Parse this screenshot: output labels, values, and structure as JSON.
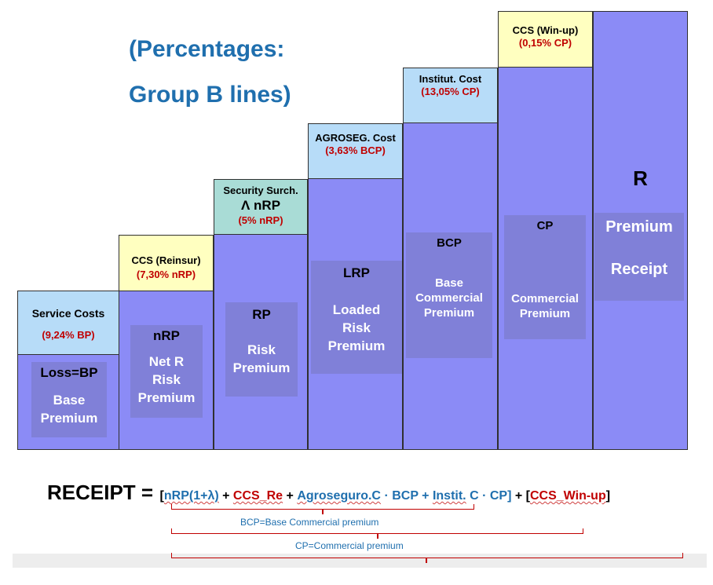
{
  "title": {
    "line1": "(Percentages:",
    "line2": "Group B lines)"
  },
  "columns": [
    {
      "header": {
        "label": "Service Costs",
        "pct": "(9,24% BP)"
      },
      "inner": {
        "abbr": "Loss=BP",
        "l1": "Base",
        "l2": "Premium"
      }
    },
    {
      "header": {
        "label": "CCS (Reinsur)",
        "pct": "(7,30% nRP)"
      },
      "inner": {
        "abbr": "nRP",
        "l1": "Net R",
        "l2": "Risk",
        "l3": "Premium"
      }
    },
    {
      "header": {
        "label": "Security Surch.",
        "sub": "Λ nRP",
        "pct": "(5% nRP)"
      },
      "inner": {
        "abbr": "RP",
        "l1": "Risk",
        "l2": "Premium"
      }
    },
    {
      "header": {
        "label": "AGROSEG. Cost",
        "pct": "(3,63% BCP)"
      },
      "inner": {
        "abbr": "LRP",
        "l1": "Loaded",
        "l2": "Risk",
        "l3": "Premium"
      }
    },
    {
      "header": {
        "label": "Institut. Cost",
        "pct": "(13,05% CP)"
      },
      "inner": {
        "abbr": "BCP",
        "l1": "Base",
        "l2": "Commercial",
        "l3": "Premium"
      }
    },
    {
      "header": {
        "label": "CCS (Win-up)",
        "pct": "(0,15% CP)"
      },
      "inner": {
        "abbr": "CP",
        "l1": "Commercial",
        "l2": "Premium"
      }
    },
    {
      "big": "R",
      "inner": {
        "l1": "Premium",
        "l2": "Receipt"
      }
    }
  ],
  "formula": {
    "lhs": "RECEIPT =",
    "b1": "[",
    "t1": "nRP(1+λ)",
    "op1": "+",
    "t2": "CCS_Re",
    "op2": "+",
    "t3": "Agroseguro.C",
    "op3": "· BCP +",
    "t4": "Instit.",
    "t5": "C · CP]",
    "op4": "+ [",
    "t6": "CCS_Win-up",
    "b2": "]"
  },
  "braces": {
    "bcp": "BCP=Base Commercial premium",
    "cp": "CP=Commercial premium"
  },
  "colors": {
    "column": "#8b8bf6",
    "inner": "#8080d8",
    "yellow": "#ffffc0",
    "lightblue": "#b7dcf8",
    "teal": "#a9dcd6",
    "red": "#c00000",
    "blue": "#1f6fae"
  }
}
